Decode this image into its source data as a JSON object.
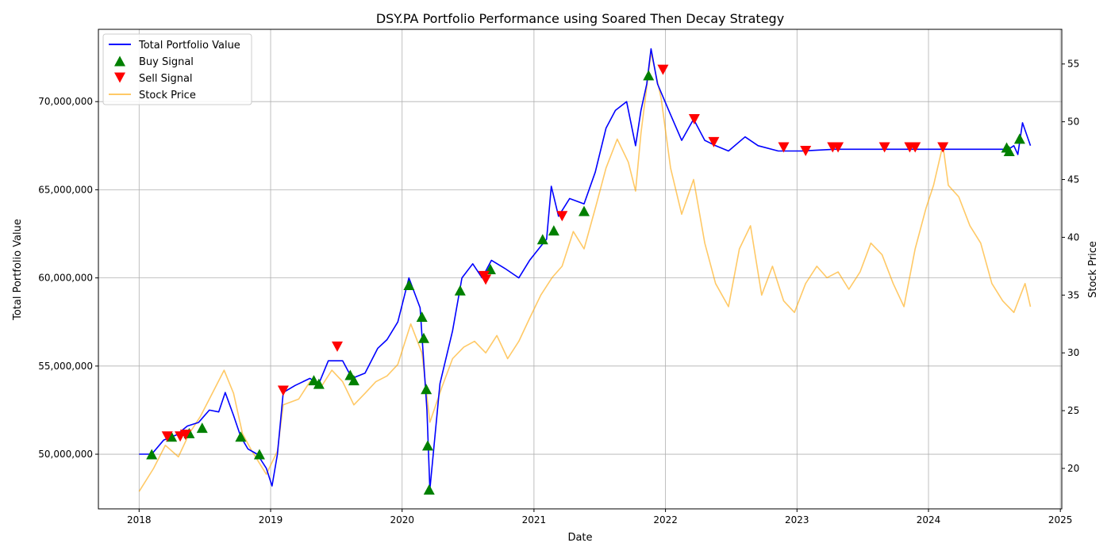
{
  "chart_data": {
    "type": "line",
    "title": "DSY.PA Portfolio Performance using Soared Then Decay Strategy",
    "xlabel": "Date",
    "ylabel": "Total Portfolio Value",
    "y2label": "Stock Price",
    "xlim": [
      "2017-09-10",
      "2025-01-05"
    ],
    "ylim": [
      46900000,
      74100000
    ],
    "y2lim": [
      16.5,
      58.0
    ],
    "x_ticks": [
      "2018",
      "2019",
      "2020",
      "2021",
      "2022",
      "2023",
      "2024",
      "2025"
    ],
    "y_ticks": [
      "50,000,000",
      "55,000,000",
      "60,000,000",
      "65,000,000",
      "70,000,000"
    ],
    "y2_ticks": [
      "20",
      "25",
      "30",
      "35",
      "40",
      "45",
      "50",
      "55"
    ],
    "grid": true,
    "legend_position": "top-left",
    "legend": [
      {
        "label": "Total Portfolio Value",
        "kind": "line",
        "color": "#0000ff"
      },
      {
        "label": "Buy Signal",
        "kind": "triangle-up",
        "color": "#008000"
      },
      {
        "label": "Sell Signal",
        "kind": "triangle-down",
        "color": "#ff0000"
      },
      {
        "label": "Stock Price",
        "kind": "line",
        "color": "#ffa500"
      }
    ],
    "colors": {
      "portfolio": "#0000ff",
      "stock": "#ffa500",
      "buy": "#008000",
      "sell": "#ff0000",
      "grid": "#b0b0b0"
    },
    "series": [
      {
        "name": "Total Portfolio Value",
        "axis": "left",
        "points": [
          [
            "2018-01-01",
            50000000
          ],
          [
            "2018-02-05",
            50000000
          ],
          [
            "2018-03-10",
            50800000
          ],
          [
            "2018-04-15",
            51100000
          ],
          [
            "2018-05-15",
            51600000
          ],
          [
            "2018-06-15",
            51800000
          ],
          [
            "2018-07-15",
            52500000
          ],
          [
            "2018-08-10",
            52400000
          ],
          [
            "2018-08-28",
            53500000
          ],
          [
            "2018-09-20",
            52200000
          ],
          [
            "2018-10-10",
            51000000
          ],
          [
            "2018-10-30",
            50300000
          ],
          [
            "2018-11-25",
            50000000
          ],
          [
            "2018-12-20",
            49200000
          ],
          [
            "2019-01-05",
            48200000
          ],
          [
            "2019-01-20",
            50000000
          ],
          [
            "2019-02-05",
            53500000
          ],
          [
            "2019-03-10",
            53900000
          ],
          [
            "2019-04-20",
            54300000
          ],
          [
            "2019-05-15",
            54000000
          ],
          [
            "2019-06-10",
            55300000
          ],
          [
            "2019-07-20",
            55300000
          ],
          [
            "2019-08-15",
            54300000
          ],
          [
            "2019-09-20",
            54600000
          ],
          [
            "2019-10-25",
            56000000
          ],
          [
            "2019-11-20",
            56500000
          ],
          [
            "2019-12-20",
            57500000
          ],
          [
            "2020-01-20",
            60000000
          ],
          [
            "2020-02-20",
            58300000
          ],
          [
            "2020-03-10",
            52500000
          ],
          [
            "2020-03-18",
            48000000
          ],
          [
            "2020-04-15",
            54000000
          ],
          [
            "2020-05-20",
            57000000
          ],
          [
            "2020-06-15",
            60000000
          ],
          [
            "2020-07-15",
            60800000
          ],
          [
            "2020-08-10",
            60000000
          ],
          [
            "2020-09-05",
            61000000
          ],
          [
            "2020-10-15",
            60500000
          ],
          [
            "2020-11-20",
            60000000
          ],
          [
            "2020-12-20",
            61000000
          ],
          [
            "2021-01-20",
            61800000
          ],
          [
            "2021-02-05",
            62200000
          ],
          [
            "2021-02-18",
            65200000
          ],
          [
            "2021-03-10",
            63500000
          ],
          [
            "2021-04-10",
            64500000
          ],
          [
            "2021-05-20",
            64200000
          ],
          [
            "2021-06-20",
            66000000
          ],
          [
            "2021-07-20",
            68500000
          ],
          [
            "2021-08-15",
            69500000
          ],
          [
            "2021-09-15",
            70000000
          ],
          [
            "2021-10-10",
            67500000
          ],
          [
            "2021-10-25",
            69500000
          ],
          [
            "2021-11-10",
            71000000
          ],
          [
            "2021-11-22",
            73000000
          ],
          [
            "2021-12-10",
            71000000
          ],
          [
            "2022-01-10",
            69500000
          ],
          [
            "2022-02-15",
            67800000
          ],
          [
            "2022-03-20",
            69000000
          ],
          [
            "2022-04-20",
            67800000
          ],
          [
            "2022-05-20",
            67500000
          ],
          [
            "2022-06-25",
            67200000
          ],
          [
            "2022-08-10",
            68000000
          ],
          [
            "2022-09-15",
            67500000
          ],
          [
            "2022-11-10",
            67200000
          ],
          [
            "2023-01-15",
            67200000
          ],
          [
            "2023-04-15",
            67300000
          ],
          [
            "2023-08-01",
            67300000
          ],
          [
            "2024-01-01",
            67300000
          ],
          [
            "2024-08-10",
            67300000
          ],
          [
            "2024-08-25",
            67500000
          ],
          [
            "2024-09-05",
            67000000
          ],
          [
            "2024-09-18",
            68800000
          ],
          [
            "2024-10-10",
            67500000
          ]
        ]
      },
      {
        "name": "Stock Price",
        "axis": "right",
        "points": [
          [
            "2018-01-01",
            18.0
          ],
          [
            "2018-02-10",
            20.0
          ],
          [
            "2018-03-15",
            22.0
          ],
          [
            "2018-04-20",
            21.0
          ],
          [
            "2018-05-20",
            23.0
          ],
          [
            "2018-06-20",
            24.5
          ],
          [
            "2018-07-15",
            26.0
          ],
          [
            "2018-08-25",
            28.5
          ],
          [
            "2018-09-20",
            26.5
          ],
          [
            "2018-10-15",
            23.0
          ],
          [
            "2018-11-10",
            21.5
          ],
          [
            "2018-12-20",
            19.5
          ],
          [
            "2019-01-20",
            21.5
          ],
          [
            "2019-02-05",
            25.5
          ],
          [
            "2019-03-20",
            26.0
          ],
          [
            "2019-04-20",
            27.5
          ],
          [
            "2019-05-20",
            27.0
          ],
          [
            "2019-06-20",
            28.5
          ],
          [
            "2019-07-20",
            27.5
          ],
          [
            "2019-08-20",
            25.5
          ],
          [
            "2019-09-20",
            26.5
          ],
          [
            "2019-10-20",
            27.5
          ],
          [
            "2019-11-20",
            28.0
          ],
          [
            "2019-12-20",
            29.0
          ],
          [
            "2020-01-25",
            32.5
          ],
          [
            "2020-02-25",
            30.0
          ],
          [
            "2020-03-18",
            24.0
          ],
          [
            "2020-04-20",
            27.0
          ],
          [
            "2020-05-20",
            29.5
          ],
          [
            "2020-06-20",
            30.5
          ],
          [
            "2020-07-20",
            31.0
          ],
          [
            "2020-08-20",
            30.0
          ],
          [
            "2020-09-20",
            31.5
          ],
          [
            "2020-10-20",
            29.5
          ],
          [
            "2020-11-20",
            31.0
          ],
          [
            "2020-12-20",
            33.0
          ],
          [
            "2021-01-20",
            35.0
          ],
          [
            "2021-02-20",
            36.5
          ],
          [
            "2021-03-20",
            37.5
          ],
          [
            "2021-04-20",
            40.5
          ],
          [
            "2021-05-20",
            39.0
          ],
          [
            "2021-06-20",
            42.5
          ],
          [
            "2021-07-20",
            46.0
          ],
          [
            "2021-08-20",
            48.5
          ],
          [
            "2021-09-20",
            46.5
          ],
          [
            "2021-10-10",
            44.0
          ],
          [
            "2021-10-25",
            49.0
          ],
          [
            "2021-11-22",
            56.0
          ],
          [
            "2021-12-20",
            52.0
          ],
          [
            "2022-01-15",
            46.0
          ],
          [
            "2022-02-15",
            42.0
          ],
          [
            "2022-03-20",
            45.0
          ],
          [
            "2022-04-20",
            39.5
          ],
          [
            "2022-05-20",
            36.0
          ],
          [
            "2022-06-25",
            34.0
          ],
          [
            "2022-07-25",
            39.0
          ],
          [
            "2022-08-25",
            41.0
          ],
          [
            "2022-09-25",
            35.0
          ],
          [
            "2022-10-25",
            37.5
          ],
          [
            "2022-11-25",
            34.5
          ],
          [
            "2022-12-25",
            33.5
          ],
          [
            "2023-01-25",
            36.0
          ],
          [
            "2023-02-25",
            37.5
          ],
          [
            "2023-03-25",
            36.5
          ],
          [
            "2023-04-25",
            37.0
          ],
          [
            "2023-05-25",
            35.5
          ],
          [
            "2023-06-25",
            37.0
          ],
          [
            "2023-07-25",
            39.5
          ],
          [
            "2023-08-25",
            38.5
          ],
          [
            "2023-09-25",
            36.0
          ],
          [
            "2023-10-25",
            34.0
          ],
          [
            "2023-11-25",
            39.0
          ],
          [
            "2023-12-25",
            42.5
          ],
          [
            "2024-01-15",
            44.5
          ],
          [
            "2024-02-10",
            48.0
          ],
          [
            "2024-02-25",
            44.5
          ],
          [
            "2024-03-25",
            43.5
          ],
          [
            "2024-04-25",
            41.0
          ],
          [
            "2024-05-25",
            39.5
          ],
          [
            "2024-06-25",
            36.0
          ],
          [
            "2024-07-25",
            34.5
          ],
          [
            "2024-08-25",
            33.5
          ],
          [
            "2024-09-25",
            36.0
          ],
          [
            "2024-10-10",
            34.0
          ]
        ]
      }
    ],
    "buy_signals": [
      [
        "2018-02-05",
        50000000
      ],
      [
        "2018-04-01",
        51000000
      ],
      [
        "2018-05-20",
        51200000
      ],
      [
        "2018-06-25",
        51500000
      ],
      [
        "2018-10-10",
        51000000
      ],
      [
        "2018-12-01",
        50000000
      ],
      [
        "2019-05-01",
        54200000
      ],
      [
        "2019-05-15",
        54000000
      ],
      [
        "2019-08-10",
        54500000
      ],
      [
        "2019-08-20",
        54200000
      ],
      [
        "2020-01-20",
        59600000
      ],
      [
        "2020-02-25",
        57800000
      ],
      [
        "2020-03-01",
        56600000
      ],
      [
        "2020-03-08",
        53700000
      ],
      [
        "2020-03-12",
        50500000
      ],
      [
        "2020-03-16",
        48000000
      ],
      [
        "2020-06-10",
        59300000
      ],
      [
        "2020-09-02",
        60500000
      ],
      [
        "2021-01-25",
        62200000
      ],
      [
        "2021-02-25",
        62700000
      ],
      [
        "2021-05-20",
        63800000
      ],
      [
        "2021-11-15",
        71500000
      ],
      [
        "2024-08-05",
        67400000
      ],
      [
        "2024-08-12",
        67200000
      ],
      [
        "2024-09-10",
        67900000
      ]
    ],
    "sell_signals": [
      [
        "2018-03-20",
        51000000
      ],
      [
        "2018-04-25",
        51000000
      ],
      [
        "2018-05-10",
        51100000
      ],
      [
        "2019-02-05",
        53600000
      ],
      [
        "2019-07-05",
        56100000
      ],
      [
        "2020-08-15",
        60100000
      ],
      [
        "2020-08-20",
        59900000
      ],
      [
        "2021-03-20",
        63500000
      ],
      [
        "2021-12-25",
        71800000
      ],
      [
        "2022-03-22",
        69000000
      ],
      [
        "2022-05-15",
        67700000
      ],
      [
        "2022-11-25",
        67400000
      ],
      [
        "2023-01-25",
        67200000
      ],
      [
        "2023-04-10",
        67400000
      ],
      [
        "2023-04-25",
        67400000
      ],
      [
        "2023-09-01",
        67400000
      ],
      [
        "2023-11-10",
        67400000
      ],
      [
        "2023-11-25",
        67400000
      ],
      [
        "2024-02-10",
        67400000
      ]
    ]
  }
}
